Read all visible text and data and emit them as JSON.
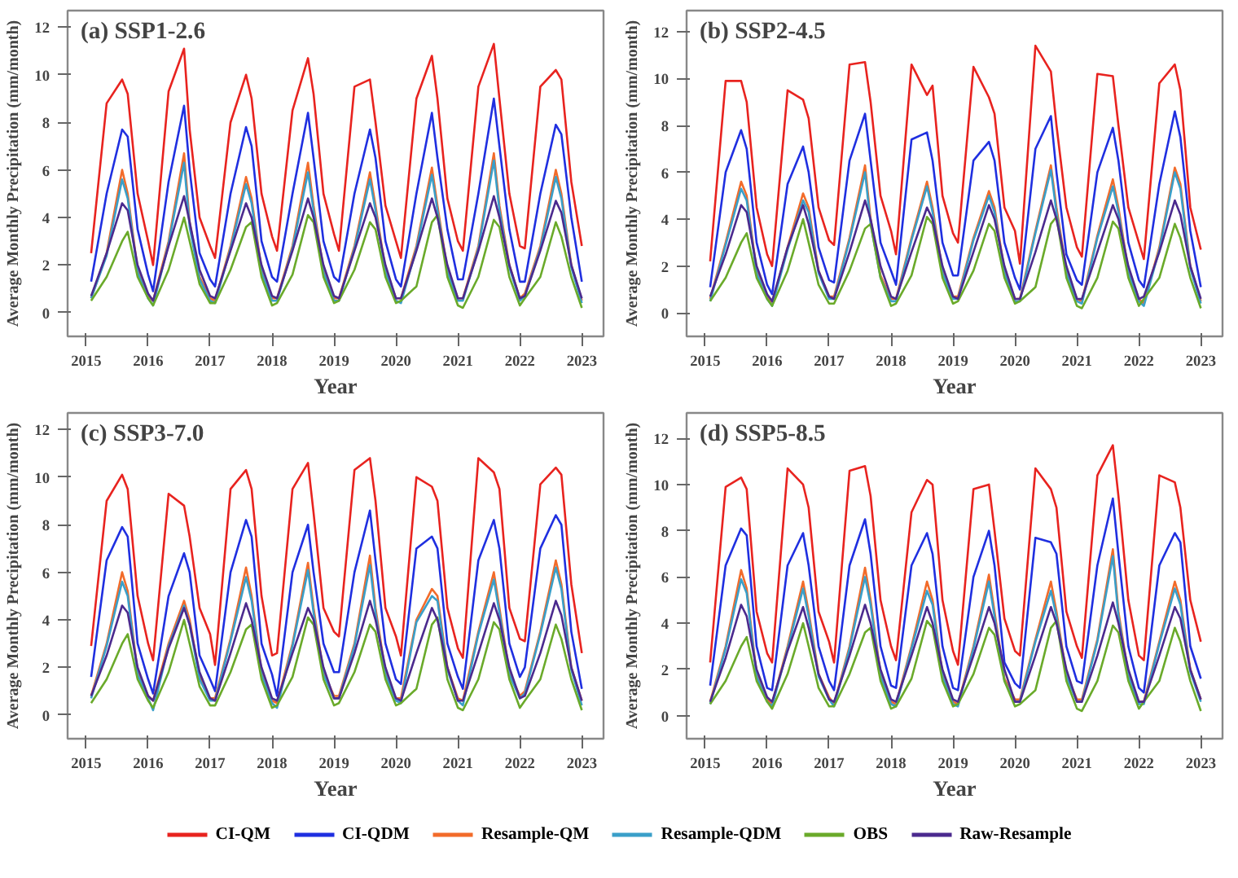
{
  "chart_data": [
    {
      "type": "line",
      "title": "(a) SSP1-2.6",
      "legend": "bottom",
      "xlabel": "Year",
      "ylabel": "Average Monthly Precipitation (mm/month)",
      "xlim": [
        2014.7,
        2023.35
      ],
      "xticks": [
        2015,
        2016,
        2017,
        2018,
        2019,
        2020,
        2021,
        2022,
        2023
      ],
      "ylim": [
        -1.0,
        12.7
      ],
      "yticks": [
        0,
        2,
        4,
        6,
        8,
        10,
        12
      ],
      "x": [
        2015.08,
        2015.33,
        2015.58,
        2015.67,
        2015.83,
        2016.0,
        2016.08,
        2016.33,
        2016.58,
        2016.67,
        2016.83,
        2017.0,
        2017.08,
        2017.33,
        2017.58,
        2017.67,
        2017.83,
        2018.0,
        2018.08,
        2018.33,
        2018.58,
        2018.67,
        2018.83,
        2019.0,
        2019.08,
        2019.33,
        2019.58,
        2019.67,
        2019.83,
        2020.0,
        2020.08,
        2020.33,
        2020.58,
        2020.67,
        2020.83,
        2021.0,
        2021.08,
        2021.33,
        2021.58,
        2021.67,
        2021.83,
        2022.0,
        2022.08,
        2022.33,
        2022.58,
        2022.67,
        2022.83,
        2023.0
      ],
      "series": [
        {
          "name": "CI-QM",
          "color": "#e8231f",
          "values": [
            2.5,
            8.8,
            9.8,
            9.2,
            5.0,
            3.0,
            2.0,
            9.3,
            11.1,
            7.7,
            4.0,
            2.8,
            2.3,
            8.0,
            10.0,
            9.0,
            5.0,
            3.2,
            2.6,
            8.5,
            10.7,
            9.2,
            5.0,
            3.3,
            2.6,
            9.5,
            9.8,
            8.0,
            4.5,
            3.0,
            2.3,
            9.0,
            10.8,
            9.0,
            4.8,
            3.0,
            2.6,
            9.5,
            11.3,
            9.0,
            5.0,
            2.8,
            2.7,
            9.5,
            10.2,
            9.8,
            5.5,
            2.8
          ]
        },
        {
          "name": "CI-QDM",
          "color": "#1f2fe0",
          "values": [
            1.3,
            5.0,
            7.7,
            7.4,
            3.5,
            1.6,
            0.9,
            5.5,
            8.7,
            6.0,
            2.5,
            1.4,
            1.1,
            5.0,
            7.8,
            7.0,
            3.0,
            1.5,
            1.3,
            5.0,
            8.4,
            6.5,
            3.0,
            1.5,
            1.3,
            5.0,
            7.7,
            6.5,
            3.0,
            1.4,
            1.1,
            5.0,
            8.4,
            6.5,
            3.5,
            1.4,
            1.4,
            5.0,
            9.0,
            7.0,
            3.5,
            1.3,
            1.3,
            5.0,
            7.9,
            7.5,
            4.0,
            1.3
          ]
        },
        {
          "name": "Resample-QM",
          "color": "#f26b2a",
          "values": [
            0.6,
            2.5,
            6.0,
            5.0,
            1.8,
            0.7,
            0.5,
            3.0,
            6.7,
            3.8,
            1.5,
            0.6,
            0.5,
            2.8,
            5.7,
            4.8,
            1.8,
            0.6,
            0.6,
            2.8,
            6.3,
            4.5,
            1.8,
            0.6,
            0.6,
            2.8,
            5.9,
            4.5,
            1.8,
            0.6,
            0.6,
            2.8,
            6.1,
            4.5,
            1.8,
            0.6,
            0.6,
            2.8,
            6.7,
            4.5,
            2.0,
            0.6,
            0.8,
            2.8,
            6.0,
            5.0,
            2.0,
            0.5
          ]
        },
        {
          "name": "Resample-QDM",
          "color": "#3a9fc9",
          "values": [
            0.6,
            2.4,
            5.6,
            4.8,
            1.7,
            0.6,
            0.3,
            2.9,
            6.3,
            3.6,
            1.4,
            0.5,
            0.4,
            2.7,
            5.4,
            4.6,
            1.7,
            0.5,
            0.5,
            2.7,
            5.9,
            4.3,
            1.7,
            0.5,
            0.5,
            2.7,
            5.6,
            4.3,
            1.7,
            0.5,
            0.4,
            2.7,
            5.8,
            4.3,
            1.7,
            0.5,
            0.5,
            2.7,
            6.4,
            4.3,
            1.9,
            0.5,
            0.7,
            2.7,
            5.7,
            4.8,
            1.9,
            0.4
          ]
        },
        {
          "name": "OBS",
          "color": "#6aaa2a",
          "values": [
            0.5,
            1.5,
            3.0,
            3.4,
            1.5,
            0.6,
            0.3,
            1.8,
            4.0,
            3.0,
            1.2,
            0.4,
            0.4,
            1.8,
            3.6,
            3.8,
            1.5,
            0.3,
            0.4,
            1.6,
            4.1,
            3.8,
            1.5,
            0.4,
            0.5,
            1.8,
            3.8,
            3.5,
            1.5,
            0.4,
            0.5,
            1.1,
            3.8,
            4.1,
            1.5,
            0.3,
            0.2,
            1.5,
            3.9,
            3.6,
            1.5,
            0.3,
            0.6,
            1.5,
            3.8,
            3.2,
            1.5,
            0.2
          ]
        },
        {
          "name": "Raw-Resample",
          "color": "#4b2a8e",
          "values": [
            0.7,
            2.5,
            4.6,
            4.3,
            2.0,
            0.8,
            0.5,
            2.8,
            4.9,
            3.8,
            1.8,
            0.7,
            0.6,
            2.6,
            4.6,
            4.0,
            2.0,
            0.7,
            0.6,
            2.6,
            4.8,
            4.0,
            2.0,
            0.7,
            0.6,
            2.6,
            4.6,
            4.0,
            2.0,
            0.6,
            0.6,
            2.6,
            4.8,
            4.0,
            2.0,
            0.6,
            0.6,
            2.6,
            4.9,
            4.0,
            2.0,
            0.6,
            0.7,
            2.6,
            4.7,
            4.2,
            2.0,
            0.6
          ]
        }
      ]
    },
    {
      "type": "line",
      "title": "(b) SSP2-4.5",
      "xlabel": "Year",
      "ylabel": "Average Monthly Precipitation (mm/month)",
      "xlim": [
        2014.7,
        2023.35
      ],
      "xticks": [
        2015,
        2016,
        2017,
        2018,
        2019,
        2020,
        2021,
        2022,
        2023
      ],
      "ylim": [
        -1.0,
        12.9
      ],
      "yticks": [
        0,
        2,
        4,
        6,
        8,
        10,
        12
      ],
      "x": [
        2015.08,
        2015.33,
        2015.58,
        2015.67,
        2015.83,
        2016.0,
        2016.08,
        2016.33,
        2016.58,
        2016.67,
        2016.83,
        2017.0,
        2017.08,
        2017.33,
        2017.58,
        2017.67,
        2017.83,
        2018.0,
        2018.08,
        2018.33,
        2018.58,
        2018.67,
        2018.83,
        2019.0,
        2019.08,
        2019.33,
        2019.58,
        2019.67,
        2019.83,
        2020.0,
        2020.08,
        2020.33,
        2020.58,
        2020.67,
        2020.83,
        2021.0,
        2021.08,
        2021.33,
        2021.58,
        2021.67,
        2021.83,
        2022.0,
        2022.08,
        2022.33,
        2022.58,
        2022.67,
        2022.83,
        2023.0
      ],
      "series": [
        {
          "color": "#e8231f",
          "values": [
            2.2,
            9.9,
            9.9,
            9.0,
            4.5,
            2.5,
            2.0,
            9.5,
            9.1,
            8.3,
            4.5,
            3.1,
            2.9,
            10.6,
            10.7,
            9.0,
            5.0,
            3.5,
            2.5,
            10.6,
            9.3,
            9.7,
            5.0,
            3.4,
            3.0,
            10.5,
            9.2,
            8.5,
            4.5,
            3.5,
            2.1,
            11.4,
            10.3,
            8.0,
            4.5,
            2.8,
            2.4,
            10.2,
            10.1,
            8.0,
            4.5,
            3.0,
            2.3,
            9.8,
            10.6,
            9.5,
            4.5,
            2.7
          ]
        },
        {
          "color": "#1f2fe0",
          "values": [
            1.1,
            6.0,
            7.8,
            7.0,
            3.0,
            1.2,
            0.8,
            5.5,
            7.1,
            6.0,
            2.8,
            1.4,
            1.3,
            6.5,
            8.5,
            6.5,
            3.0,
            1.8,
            1.2,
            7.4,
            7.7,
            6.5,
            3.0,
            1.6,
            1.6,
            6.5,
            7.3,
            6.5,
            3.0,
            1.5,
            1.0,
            7.0,
            8.4,
            6.0,
            2.5,
            1.4,
            1.2,
            6.0,
            7.9,
            6.5,
            3.0,
            1.4,
            1.1,
            5.5,
            8.6,
            7.5,
            3.5,
            1.1
          ]
        },
        {
          "color": "#f26b2a",
          "values": [
            0.6,
            3.0,
            5.6,
            5.0,
            1.8,
            0.7,
            0.4,
            2.8,
            5.1,
            4.5,
            1.8,
            0.7,
            0.7,
            3.2,
            6.3,
            4.0,
            1.6,
            0.6,
            0.6,
            3.2,
            5.6,
            4.5,
            1.8,
            0.7,
            0.7,
            3.2,
            5.2,
            4.5,
            1.8,
            0.6,
            0.6,
            3.5,
            6.3,
            4.5,
            1.8,
            0.6,
            0.5,
            3.3,
            5.7,
            4.5,
            1.8,
            0.6,
            0.4,
            2.8,
            6.2,
            5.5,
            2.0,
            0.5
          ]
        },
        {
          "color": "#3a9fc9",
          "values": [
            0.5,
            2.9,
            5.3,
            4.8,
            1.7,
            0.6,
            0.3,
            2.7,
            4.8,
            4.3,
            1.7,
            0.6,
            0.6,
            3.1,
            6.0,
            3.8,
            1.5,
            0.5,
            0.5,
            3.1,
            5.4,
            4.3,
            1.7,
            0.6,
            0.6,
            3.1,
            5.0,
            4.3,
            1.7,
            0.5,
            0.5,
            3.4,
            6.1,
            4.3,
            1.7,
            0.5,
            0.4,
            3.2,
            5.4,
            4.3,
            1.7,
            0.5,
            0.3,
            2.7,
            6.0,
            5.3,
            1.9,
            0.4
          ]
        },
        {
          "color": "#6aaa2a",
          "values": [
            0.5,
            1.5,
            3.0,
            3.4,
            1.5,
            0.6,
            0.3,
            1.8,
            4.0,
            3.0,
            1.2,
            0.4,
            0.4,
            1.8,
            3.6,
            3.8,
            1.5,
            0.3,
            0.4,
            1.6,
            4.1,
            3.8,
            1.5,
            0.4,
            0.5,
            1.8,
            3.8,
            3.5,
            1.5,
            0.4,
            0.5,
            1.1,
            3.8,
            4.1,
            1.5,
            0.3,
            0.2,
            1.5,
            3.9,
            3.6,
            1.5,
            0.3,
            0.6,
            1.5,
            3.8,
            3.2,
            1.5,
            0.2
          ]
        },
        {
          "color": "#4b2a8e",
          "values": [
            0.7,
            2.5,
            4.6,
            4.3,
            2.0,
            0.8,
            0.5,
            2.8,
            4.6,
            3.8,
            1.8,
            0.7,
            0.6,
            2.6,
            4.8,
            4.0,
            2.0,
            0.7,
            0.6,
            2.6,
            4.5,
            4.0,
            2.0,
            0.7,
            0.6,
            2.6,
            4.6,
            4.0,
            2.0,
            0.6,
            0.6,
            2.6,
            4.8,
            4.0,
            2.0,
            0.6,
            0.6,
            2.6,
            4.6,
            4.0,
            2.0,
            0.6,
            0.7,
            2.6,
            4.8,
            4.2,
            2.0,
            0.6
          ]
        }
      ]
    },
    {
      "type": "line",
      "title": "(c) SSP3-7.0",
      "xlabel": "Year",
      "ylabel": "Average Monthly Precipitation (mm/month)",
      "xlim": [
        2014.7,
        2023.35
      ],
      "xticks": [
        2015,
        2016,
        2017,
        2018,
        2019,
        2020,
        2021,
        2022,
        2023
      ],
      "ylim": [
        -1.0,
        12.7
      ],
      "yticks": [
        0,
        2,
        4,
        6,
        8,
        10,
        12
      ],
      "x": [
        2015.08,
        2015.33,
        2015.58,
        2015.67,
        2015.83,
        2016.0,
        2016.08,
        2016.33,
        2016.58,
        2016.67,
        2016.83,
        2017.0,
        2017.08,
        2017.33,
        2017.58,
        2017.67,
        2017.83,
        2018.0,
        2018.08,
        2018.33,
        2018.58,
        2018.67,
        2018.83,
        2019.0,
        2019.08,
        2019.33,
        2019.58,
        2019.67,
        2019.83,
        2020.0,
        2020.08,
        2020.33,
        2020.58,
        2020.67,
        2020.83,
        2021.0,
        2021.08,
        2021.33,
        2021.58,
        2021.67,
        2021.83,
        2022.0,
        2022.08,
        2022.33,
        2022.58,
        2022.67,
        2022.83,
        2023.0
      ],
      "series": [
        {
          "color": "#e8231f",
          "values": [
            2.9,
            9.0,
            10.1,
            9.5,
            5.0,
            3.0,
            2.3,
            9.3,
            8.8,
            7.5,
            4.5,
            3.4,
            2.1,
            9.5,
            10.3,
            9.5,
            5.0,
            2.5,
            2.6,
            9.5,
            10.6,
            8.5,
            4.5,
            3.5,
            3.3,
            10.3,
            10.8,
            9.0,
            4.5,
            3.3,
            2.5,
            10.0,
            9.6,
            9.0,
            4.5,
            2.8,
            2.4,
            10.8,
            10.2,
            9.5,
            4.5,
            3.2,
            3.1,
            9.7,
            10.4,
            10.1,
            5.5,
            2.6
          ]
        },
        {
          "color": "#1f2fe0",
          "values": [
            1.6,
            6.5,
            7.9,
            7.5,
            3.0,
            1.5,
            0.9,
            5.0,
            6.8,
            6.0,
            2.5,
            1.5,
            1.0,
            6.0,
            8.2,
            7.5,
            3.0,
            1.7,
            0.8,
            6.0,
            8.0,
            6.0,
            3.0,
            1.8,
            1.8,
            6.0,
            8.6,
            6.5,
            3.0,
            1.5,
            1.3,
            7.0,
            7.5,
            7.0,
            3.0,
            1.6,
            1.1,
            6.5,
            8.2,
            7.0,
            3.0,
            1.6,
            2.0,
            7.0,
            8.4,
            8.0,
            3.5,
            1.1
          ]
        },
        {
          "color": "#f26b2a",
          "values": [
            0.8,
            3.0,
            6.0,
            5.2,
            1.8,
            0.8,
            0.6,
            3.0,
            4.8,
            4.0,
            1.6,
            0.7,
            0.7,
            3.2,
            6.2,
            5.0,
            1.8,
            0.6,
            0.5,
            3.0,
            6.4,
            4.5,
            1.8,
            0.8,
            0.8,
            3.0,
            6.7,
            4.5,
            1.8,
            0.7,
            0.7,
            4.0,
            5.3,
            5.0,
            2.0,
            0.7,
            0.6,
            3.5,
            6.0,
            4.5,
            1.8,
            0.8,
            1.0,
            3.5,
            6.5,
            5.5,
            2.0,
            0.6
          ]
        },
        {
          "color": "#3a9fc9",
          "values": [
            0.7,
            2.9,
            5.6,
            5.0,
            1.7,
            0.7,
            0.2,
            2.9,
            4.6,
            3.8,
            1.5,
            0.6,
            0.6,
            3.1,
            5.8,
            4.8,
            1.7,
            0.5,
            0.3,
            2.9,
            6.1,
            4.3,
            1.7,
            0.7,
            0.7,
            2.9,
            6.3,
            4.3,
            1.7,
            0.6,
            0.5,
            3.9,
            5.0,
            4.8,
            1.9,
            0.6,
            0.4,
            3.4,
            5.7,
            4.3,
            1.7,
            0.7,
            0.9,
            3.4,
            6.2,
            5.3,
            1.9,
            0.4
          ]
        },
        {
          "color": "#6aaa2a",
          "values": [
            0.5,
            1.5,
            3.0,
            3.4,
            1.5,
            0.6,
            0.3,
            1.8,
            4.0,
            3.0,
            1.2,
            0.4,
            0.4,
            1.8,
            3.6,
            3.8,
            1.5,
            0.3,
            0.4,
            1.6,
            4.1,
            3.8,
            1.5,
            0.4,
            0.5,
            1.8,
            3.8,
            3.5,
            1.5,
            0.4,
            0.5,
            1.1,
            3.8,
            4.1,
            1.5,
            0.3,
            0.2,
            1.5,
            3.9,
            3.6,
            1.5,
            0.3,
            0.6,
            1.5,
            3.8,
            3.2,
            1.5,
            0.2
          ]
        },
        {
          "color": "#4b2a8e",
          "values": [
            0.8,
            2.5,
            4.6,
            4.3,
            2.0,
            0.8,
            0.6,
            2.8,
            4.5,
            3.8,
            1.8,
            0.7,
            0.6,
            2.6,
            4.7,
            4.0,
            2.0,
            0.7,
            0.6,
            2.6,
            4.5,
            4.0,
            2.0,
            0.7,
            0.7,
            2.6,
            4.8,
            4.0,
            2.0,
            0.7,
            0.6,
            2.6,
            4.5,
            4.0,
            2.0,
            0.6,
            0.6,
            2.6,
            4.7,
            4.0,
            2.0,
            0.7,
            0.8,
            2.6,
            4.8,
            4.2,
            2.0,
            0.6
          ]
        }
      ]
    },
    {
      "type": "line",
      "title": "(d) SSP5-8.5",
      "xlabel": "Year",
      "ylabel": "Average Monthly Precipitation (mm/month)",
      "xlim": [
        2014.7,
        2023.35
      ],
      "xticks": [
        2015,
        2016,
        2017,
        2018,
        2019,
        2020,
        2021,
        2022,
        2023
      ],
      "ylim": [
        -1.0,
        13.1
      ],
      "yticks": [
        0,
        2,
        4,
        6,
        8,
        10,
        12
      ],
      "x": [
        2015.08,
        2015.33,
        2015.58,
        2015.67,
        2015.83,
        2016.0,
        2016.08,
        2016.33,
        2016.58,
        2016.67,
        2016.83,
        2017.0,
        2017.08,
        2017.33,
        2017.58,
        2017.67,
        2017.83,
        2018.0,
        2018.08,
        2018.33,
        2018.58,
        2018.67,
        2018.83,
        2019.0,
        2019.08,
        2019.33,
        2019.58,
        2019.67,
        2019.83,
        2020.0,
        2020.08,
        2020.33,
        2020.58,
        2020.67,
        2020.83,
        2021.0,
        2021.08,
        2021.33,
        2021.58,
        2021.67,
        2021.83,
        2022.0,
        2022.08,
        2022.33,
        2022.58,
        2022.67,
        2022.83,
        2023.0
      ],
      "series": [
        {
          "color": "#e8231f",
          "values": [
            2.3,
            9.9,
            10.3,
            9.8,
            4.5,
            2.7,
            2.3,
            10.7,
            10.0,
            9.0,
            4.5,
            3.2,
            2.3,
            10.6,
            10.8,
            9.5,
            5.0,
            3.0,
            2.4,
            8.8,
            10.2,
            10.0,
            5.0,
            2.8,
            2.2,
            9.8,
            10.0,
            8.0,
            4.2,
            2.8,
            2.6,
            10.7,
            9.8,
            9.0,
            4.5,
            3.0,
            2.5,
            10.4,
            11.7,
            9.5,
            5.0,
            2.6,
            2.4,
            10.4,
            10.1,
            9.0,
            5.0,
            3.2
          ]
        },
        {
          "color": "#1f2fe0",
          "values": [
            1.3,
            6.5,
            8.1,
            7.8,
            3.0,
            1.2,
            1.1,
            6.5,
            7.9,
            6.5,
            3.0,
            1.5,
            1.1,
            6.5,
            8.5,
            7.0,
            3.0,
            1.3,
            1.2,
            6.5,
            7.9,
            7.0,
            3.0,
            1.2,
            1.1,
            6.0,
            8.0,
            6.5,
            2.3,
            1.4,
            1.2,
            7.7,
            7.5,
            7.0,
            3.0,
            1.5,
            1.4,
            6.5,
            9.4,
            7.0,
            3.0,
            1.2,
            1.0,
            6.5,
            7.9,
            7.5,
            3.0,
            1.6
          ]
        },
        {
          "color": "#f26b2a",
          "values": [
            0.6,
            3.0,
            6.3,
            5.5,
            1.8,
            0.7,
            0.5,
            3.0,
            5.8,
            4.5,
            1.8,
            0.8,
            0.5,
            3.0,
            6.4,
            5.0,
            1.8,
            0.6,
            0.5,
            3.0,
            5.8,
            5.0,
            1.8,
            0.6,
            0.5,
            3.0,
            6.1,
            4.5,
            1.6,
            0.7,
            0.7,
            3.3,
            5.8,
            4.5,
            1.8,
            0.7,
            0.7,
            3.3,
            7.2,
            4.5,
            1.8,
            0.6,
            0.6,
            3.2,
            5.8,
            5.0,
            2.0,
            0.7
          ]
        },
        {
          "color": "#3a9fc9",
          "values": [
            0.5,
            2.9,
            5.9,
            5.3,
            1.7,
            0.6,
            0.4,
            2.9,
            5.5,
            4.3,
            1.7,
            0.7,
            0.4,
            2.9,
            6.0,
            4.8,
            1.7,
            0.5,
            0.4,
            2.9,
            5.4,
            4.8,
            1.7,
            0.5,
            0.4,
            2.9,
            5.8,
            4.3,
            1.5,
            0.6,
            0.6,
            3.2,
            5.4,
            4.3,
            1.7,
            0.6,
            0.6,
            3.2,
            6.9,
            4.3,
            1.7,
            0.5,
            0.5,
            3.1,
            5.5,
            4.8,
            1.9,
            0.6
          ]
        },
        {
          "color": "#6aaa2a",
          "values": [
            0.5,
            1.5,
            3.0,
            3.4,
            1.5,
            0.6,
            0.3,
            1.8,
            4.0,
            3.0,
            1.2,
            0.4,
            0.4,
            1.8,
            3.6,
            3.8,
            1.5,
            0.3,
            0.4,
            1.6,
            4.1,
            3.8,
            1.5,
            0.4,
            0.5,
            1.8,
            3.8,
            3.5,
            1.5,
            0.4,
            0.5,
            1.1,
            3.8,
            4.1,
            1.5,
            0.3,
            0.2,
            1.5,
            3.9,
            3.6,
            1.5,
            0.3,
            0.6,
            1.5,
            3.8,
            3.2,
            1.5,
            0.2
          ]
        },
        {
          "color": "#4b2a8e",
          "values": [
            0.6,
            2.5,
            4.8,
            4.3,
            2.0,
            0.8,
            0.6,
            2.8,
            4.7,
            3.8,
            1.8,
            0.7,
            0.6,
            2.6,
            4.8,
            4.0,
            2.0,
            0.7,
            0.6,
            2.6,
            4.7,
            4.0,
            2.0,
            0.7,
            0.6,
            2.6,
            4.7,
            4.0,
            2.0,
            0.6,
            0.6,
            2.6,
            4.7,
            4.0,
            2.0,
            0.6,
            0.6,
            2.6,
            4.9,
            4.0,
            2.0,
            0.6,
            0.6,
            2.6,
            4.7,
            4.2,
            2.0,
            0.7
          ]
        }
      ]
    }
  ]
}
